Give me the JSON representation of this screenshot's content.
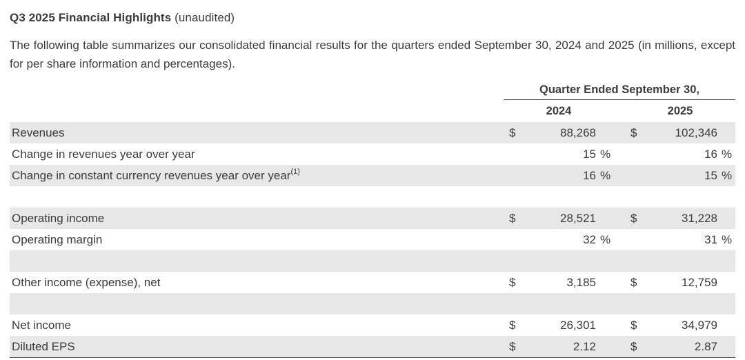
{
  "title": {
    "main": "Q3 2025 Financial Highlights",
    "suffix": " (unaudited)"
  },
  "intro": "The following table summarizes our consolidated financial results for the quarters ended September 30, 2024 and 2025 (in millions, except for per share information and percentages).",
  "colors": {
    "shaded_row": "#e7e7e7",
    "text": "#3b3b3b",
    "rule": "#4a4a4a"
  },
  "table": {
    "group_header": "Quarter Ended September 30,",
    "columns": [
      "2024",
      "2025"
    ],
    "rows": [
      {
        "label": "Revenues",
        "shaded": true,
        "y2024": {
          "prefix": "$",
          "value": "88,268",
          "suffix": ""
        },
        "y2025": {
          "prefix": "$",
          "value": "102,346",
          "suffix": ""
        }
      },
      {
        "label": "Change in revenues year over year",
        "shaded": false,
        "y2024": {
          "prefix": "",
          "value": "15",
          "suffix": "%"
        },
        "y2025": {
          "prefix": "",
          "value": "16",
          "suffix": "%"
        }
      },
      {
        "label": "Change in constant currency revenues year over year",
        "footnote": "(1)",
        "shaded": true,
        "y2024": {
          "prefix": "",
          "value": "16",
          "suffix": "%"
        },
        "y2025": {
          "prefix": "",
          "value": "15",
          "suffix": "%"
        }
      },
      {
        "blank": true,
        "shaded": false
      },
      {
        "label": "Operating income",
        "shaded": true,
        "y2024": {
          "prefix": "$",
          "value": "28,521",
          "suffix": ""
        },
        "y2025": {
          "prefix": "$",
          "value": "31,228",
          "suffix": ""
        }
      },
      {
        "label": "Operating margin",
        "shaded": false,
        "y2024": {
          "prefix": "",
          "value": "32",
          "suffix": "%"
        },
        "y2025": {
          "prefix": "",
          "value": "31",
          "suffix": "%"
        }
      },
      {
        "blank": true,
        "shaded": true
      },
      {
        "label": "Other income (expense), net",
        "shaded": false,
        "y2024": {
          "prefix": "$",
          "value": "3,185",
          "suffix": ""
        },
        "y2025": {
          "prefix": "$",
          "value": "12,759",
          "suffix": ""
        }
      },
      {
        "blank": true,
        "shaded": true
      },
      {
        "label": "Net income",
        "shaded": false,
        "y2024": {
          "prefix": "$",
          "value": "26,301",
          "suffix": ""
        },
        "y2025": {
          "prefix": "$",
          "value": "34,979",
          "suffix": ""
        }
      },
      {
        "label": "Diluted EPS",
        "shaded": true,
        "y2024": {
          "prefix": "$",
          "value": "2.12",
          "suffix": ""
        },
        "y2025": {
          "prefix": "$",
          "value": "2.87",
          "suffix": ""
        }
      }
    ]
  }
}
